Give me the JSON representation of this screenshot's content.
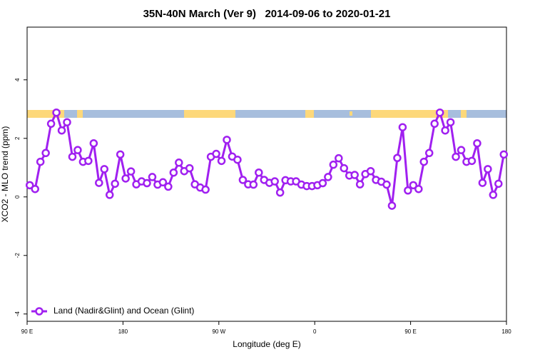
{
  "chart_data": {
    "type": "line",
    "title": "35N-40N March (Ver 9)   2014-09-06 to 2020-01-21",
    "x_label": "Longitude (deg E)",
    "y_label": "XCO2 - MLO trend (ppm)",
    "x": [
      92.5,
      97.5,
      102.5,
      107.5,
      112.5,
      117.5,
      122.5,
      127.5,
      132.5,
      137.5,
      142.5,
      147.5,
      152.5,
      157.5,
      162.5,
      167.5,
      172.5,
      177.5,
      182.5,
      187.5,
      192.5,
      197.5,
      202.5,
      207.5,
      212.5,
      217.5,
      222.5,
      227.5,
      232.5,
      237.5,
      242.5,
      247.5,
      252.5,
      257.5,
      262.5,
      267.5,
      272.5,
      277.5,
      282.5,
      287.5,
      292.5,
      297.5,
      302.5,
      307.5,
      312.5,
      317.5,
      322.5,
      327.5,
      332.5,
      337.5,
      342.5,
      347.5,
      352.5,
      357.5,
      362.5,
      367.5,
      372.5,
      377.5,
      382.5,
      387.5,
      392.5,
      397.5,
      402.5,
      407.5,
      412.5,
      417.5,
      422.5,
      427.5,
      432.5,
      437.5,
      442.5,
      447.5,
      452.5,
      457.5,
      462.5,
      467.5,
      472.5,
      477.5,
      482.5,
      487.5,
      492.5,
      497.5,
      502.5,
      507.5,
      512.5,
      517.5,
      522.5,
      527.5,
      532.5,
      537.5
    ],
    "series": [
      {
        "name": "Land (Nadir&Glint) and Ocean (Glint)",
        "color": "#a020f0",
        "values": [
          0.4,
          0.27,
          1.2,
          1.5,
          2.5,
          2.88,
          2.27,
          2.55,
          1.37,
          1.6,
          1.2,
          1.23,
          1.83,
          0.48,
          0.95,
          0.07,
          0.45,
          1.45,
          0.63,
          0.87,
          0.43,
          0.53,
          0.47,
          0.68,
          0.42,
          0.5,
          0.35,
          0.83,
          1.17,
          0.88,
          0.98,
          0.43,
          0.32,
          0.25,
          1.37,
          1.47,
          1.23,
          1.95,
          1.38,
          1.27,
          0.58,
          0.43,
          0.42,
          0.83,
          0.58,
          0.48,
          0.53,
          0.15,
          0.57,
          0.53,
          0.53,
          0.42,
          0.37,
          0.37,
          0.4,
          0.47,
          0.68,
          1.1,
          1.32,
          0.98,
          0.73,
          0.75,
          0.43,
          0.78,
          0.88,
          0.58,
          0.52,
          0.42,
          -0.3,
          1.33,
          2.38,
          0.22,
          0.4,
          0.27,
          1.2,
          1.5,
          2.5,
          2.88,
          2.27,
          2.55,
          1.37,
          1.6,
          1.2,
          1.23,
          1.83,
          0.48,
          0.95,
          0.07,
          0.45,
          1.45
        ]
      }
    ],
    "xlim": [
      90,
      540
    ],
    "ylim": [
      -4.25,
      5.8
    ],
    "xticks": [
      {
        "value": 90,
        "label": "90 E"
      },
      180,
      {
        "value": 270,
        "label": "90 W"
      },
      {
        "value": 360,
        "label": "0"
      },
      {
        "value": 450,
        "label": "90 E"
      },
      180.0001
    ],
    "yticks": [
      -4,
      -2,
      0,
      2,
      4
    ],
    "legend": "bottom-left"
  }
}
